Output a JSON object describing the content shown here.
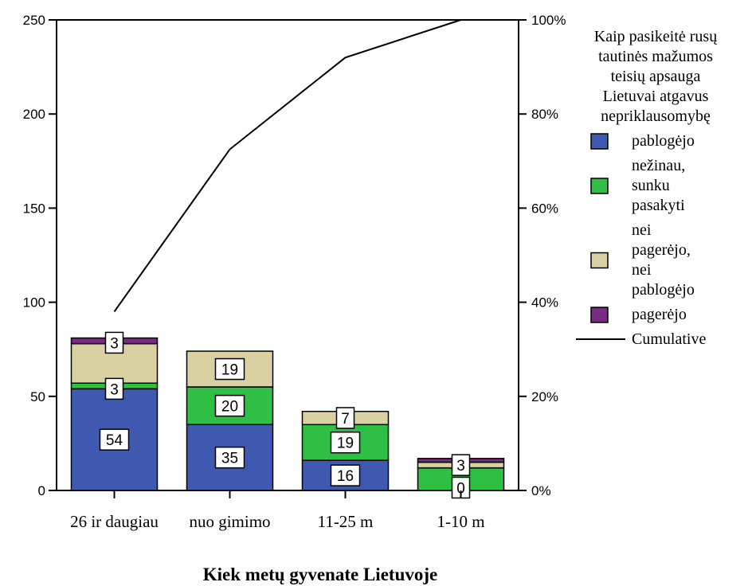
{
  "chart_data": {
    "type": "bar",
    "stacked": true,
    "categories": [
      "26 ir daugiau",
      "nuo gimimo",
      "11-25 m",
      "1-10 m"
    ],
    "series": [
      {
        "name": "pablogėjo",
        "color": "#3f58b0",
        "values": [
          54,
          35,
          16,
          0
        ]
      },
      {
        "name": "nežinau, sunku pasakyti",
        "color": "#2fbf45",
        "values": [
          3,
          20,
          19,
          12
        ]
      },
      {
        "name": "nei pagerėjo, nei pablogėjo",
        "color": "#d9d1a1",
        "values": [
          21,
          19,
          7,
          3
        ]
      },
      {
        "name": "pagerėjo",
        "color": "#7a2a82",
        "values": [
          3,
          0,
          0,
          2
        ]
      }
    ],
    "data_labels": [
      [
        54,
        3,
        3
      ],
      [
        35,
        20,
        19
      ],
      [
        16,
        19,
        7
      ],
      [
        0,
        3
      ]
    ],
    "cumulative": {
      "name": "Cumulative",
      "values_percent": [
        38,
        72.5,
        92,
        100
      ]
    },
    "xlabel": "Kiek metų gyvenate Lietuvoje",
    "ylabel": "",
    "ylim": [
      0,
      250
    ],
    "yticks": [
      "0",
      "50",
      "100",
      "150",
      "200",
      "250"
    ],
    "y2lim": [
      0,
      100
    ],
    "y2ticks": [
      "0%",
      "20%",
      "40%",
      "60%",
      "80%",
      "100%"
    ],
    "legend": {
      "title": "Kaip pasikeitė rusų tautinės mažumos teisių apsauga Lietuvai atgavus nepriklausomybę",
      "title_lines": [
        "Kaip pasikeitė rusų",
        "tautinės mažumos",
        "teisių apsauga",
        "Lietuvai atgavus",
        "nepriklausomybę"
      ],
      "items": [
        {
          "lines": [
            "pablogėjo"
          ],
          "color": "#3f58b0",
          "kind": "box"
        },
        {
          "lines": [
            "nežinau,",
            "sunku",
            "pasakyti"
          ],
          "color": "#2fbf45",
          "kind": "box"
        },
        {
          "lines": [
            "nei",
            "pagerėjo,",
            "nei",
            "pablogėjo"
          ],
          "color": "#d9d1a1",
          "kind": "box"
        },
        {
          "lines": [
            "pagerėjo"
          ],
          "color": "#7a2a82",
          "kind": "box"
        },
        {
          "lines": [
            "Cumulative"
          ],
          "color": "#000000",
          "kind": "line"
        }
      ],
      "placement": "right"
    },
    "grid": false
  }
}
